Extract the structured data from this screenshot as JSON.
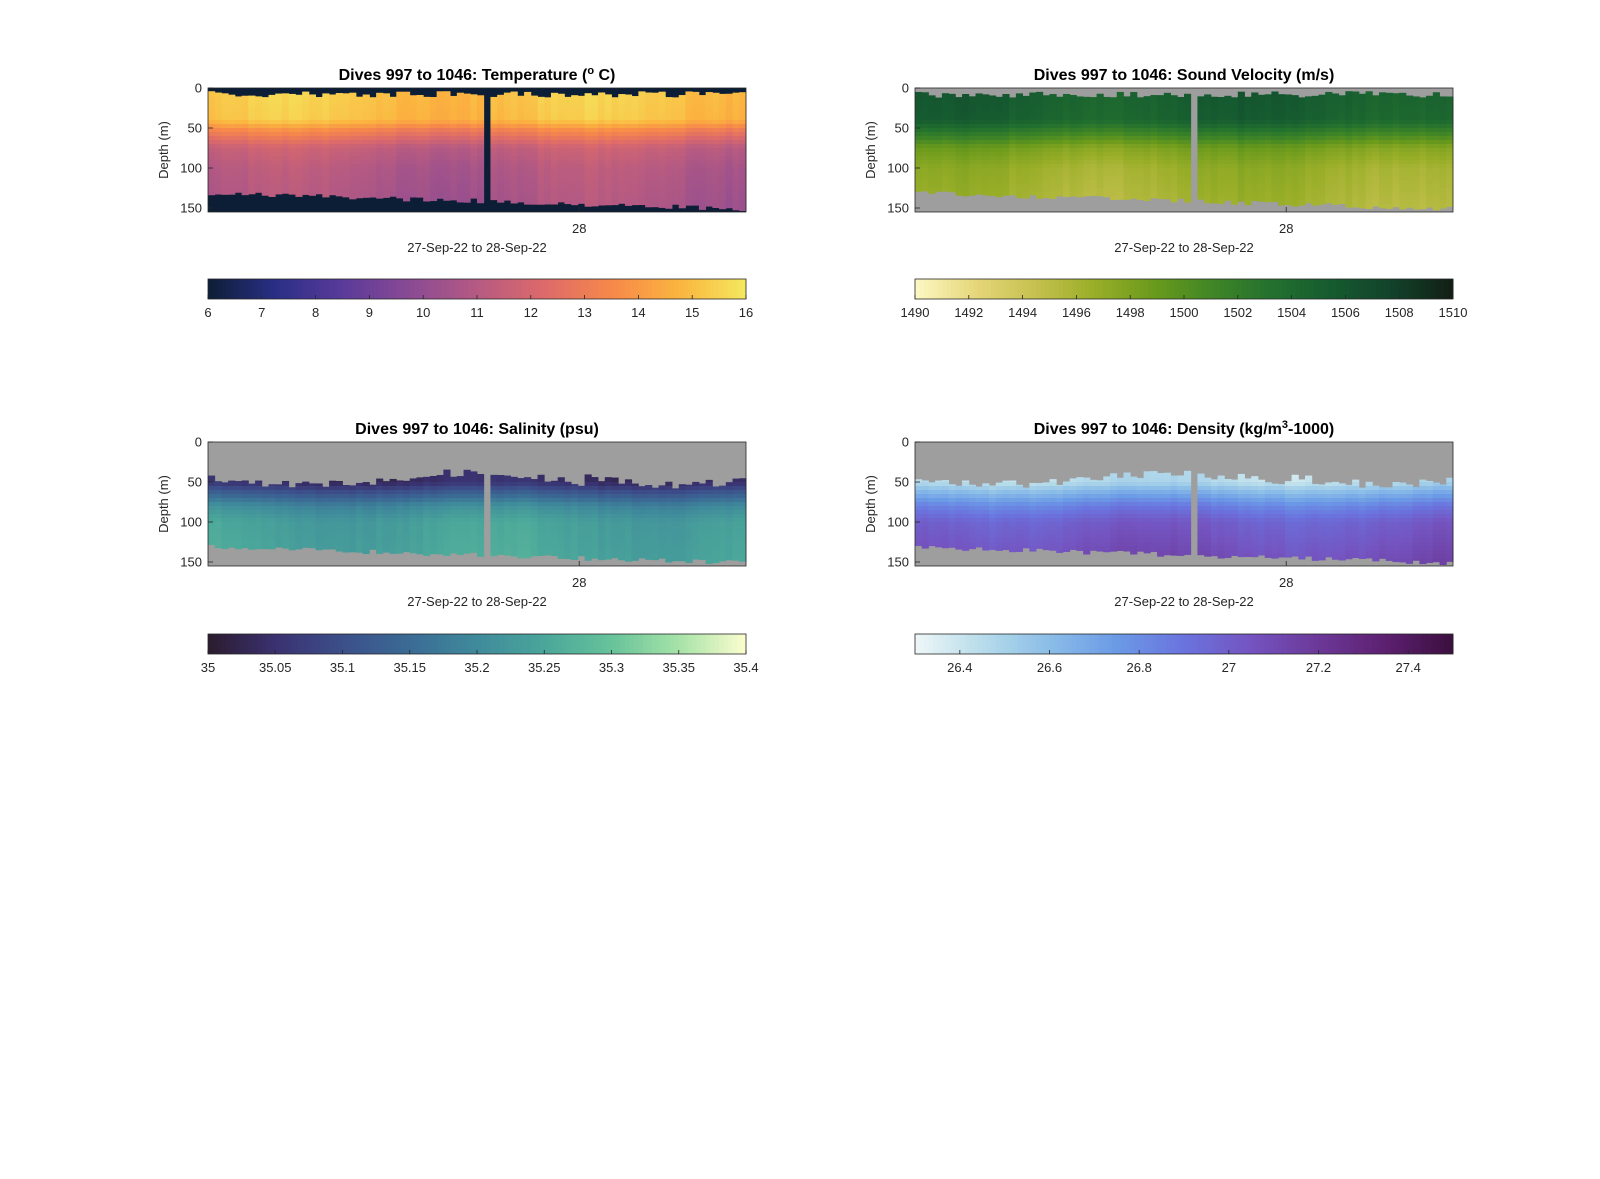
{
  "chart_data": [
    {
      "type": "heatmap",
      "title": {
        "main": "Dives 997 to 1046: Temperature (",
        "sup": "o",
        "tail": " C)"
      },
      "xlabel": "27-Sep-22 to 28-Sep-22",
      "ylabel": "Depth (m)",
      "x_ticks": [
        "28"
      ],
      "y_ticks": [
        0,
        50,
        100,
        150
      ],
      "ylim": [
        0,
        155
      ],
      "ydir": "reverse",
      "colorbar": {
        "min": 6,
        "max": 16,
        "ticks": [
          "6",
          "7",
          "8",
          "9",
          "10",
          "11",
          "12",
          "13",
          "14",
          "15",
          "16"
        ]
      },
      "colormap": [
        "#0c1e36",
        "#2a2f86",
        "#5a3a9a",
        "#8a4a94",
        "#b55a82",
        "#dd6a6a",
        "#f7884a",
        "#fbb43f",
        "#f4e85e"
      ],
      "fill_color": "#0c1e36",
      "profile": [
        [
          0,
          15.2
        ],
        [
          40,
          15.0
        ],
        [
          52,
          13.4
        ],
        [
          75,
          11.4
        ],
        [
          100,
          10.9
        ],
        [
          150,
          10.6
        ]
      ],
      "data_gap_fraction": 0.51
    },
    {
      "type": "heatmap",
      "title": {
        "main": "Dives 997 to 1046: Sound Velocity (m/s)",
        "sup": "",
        "tail": ""
      },
      "xlabel": "27-Sep-22 to 28-Sep-22",
      "ylabel": "Depth (m)",
      "x_ticks": [
        "28"
      ],
      "y_ticks": [
        0,
        50,
        100,
        150
      ],
      "ylim": [
        0,
        155
      ],
      "ydir": "reverse",
      "colorbar": {
        "min": 1490,
        "max": 1510,
        "ticks": [
          "1490",
          "1492",
          "1494",
          "1496",
          "1498",
          "1500",
          "1502",
          "1504",
          "1506",
          "1508",
          "1510"
        ]
      },
      "colormap": [
        "#fdf8c4",
        "#e6d77b",
        "#c6c14f",
        "#99ae28",
        "#6a9a1c",
        "#3f8526",
        "#22702f",
        "#155a30",
        "#12412a",
        "#121e14"
      ],
      "fill_color": "#9e9e9e",
      "profile": [
        [
          0,
          1505.3
        ],
        [
          40,
          1504.8
        ],
        [
          55,
          1502.0
        ],
        [
          75,
          1498.2
        ],
        [
          100,
          1496.6
        ],
        [
          150,
          1495.8
        ]
      ],
      "data_gap_fraction": 0.51
    },
    {
      "type": "heatmap",
      "title": {
        "main": "Dives 997 to 1046: Salinity (psu)",
        "sup": "",
        "tail": ""
      },
      "xlabel": "27-Sep-22 to 28-Sep-22",
      "ylabel": "Depth (m)",
      "x_ticks": [
        "28"
      ],
      "y_ticks": [
        0,
        50,
        100,
        150
      ],
      "ylim": [
        0,
        155
      ],
      "ydir": "reverse",
      "colorbar": {
        "min": 35,
        "max": 35.4,
        "ticks": [
          "35",
          "35.05",
          "35.1",
          "35.15",
          "35.2",
          "35.25",
          "35.3",
          "35.35",
          "35.4"
        ]
      },
      "colormap": [
        "#2b1b2e",
        "#3a3170",
        "#3c4f8a",
        "#3b6b95",
        "#3f8a9b",
        "#4aa69a",
        "#67c39a",
        "#a6e2a8",
        "#fdfdcf"
      ],
      "fill_color": "#9e9e9e",
      "profile": [
        [
          0,
          35.03
        ],
        [
          50,
          35.04
        ],
        [
          60,
          35.1
        ],
        [
          80,
          35.2
        ],
        [
          100,
          35.24
        ],
        [
          150,
          35.25
        ]
      ],
      "data_gap_fraction": 0.51
    },
    {
      "type": "heatmap",
      "title": {
        "main": "Dives 997 to 1046: Density (kg/m",
        "sup": "3",
        "tail": "-1000)"
      },
      "xlabel": "27-Sep-22 to 28-Sep-22",
      "ylabel": "Depth (m)",
      "x_ticks": [
        "28"
      ],
      "y_ticks": [
        0,
        50,
        100,
        150
      ],
      "ylim": [
        0,
        155
      ],
      "ydir": "reverse",
      "colorbar": {
        "min": 26.3,
        "max": 27.5,
        "ticks": [
          "26.4",
          "26.6",
          "26.8",
          "27",
          "27.2",
          "27.4"
        ]
      },
      "colormap": [
        "#eef7f8",
        "#b7dcea",
        "#8bbde8",
        "#6b9ae6",
        "#6a73de",
        "#7454c0",
        "#6b3898",
        "#5c2070",
        "#3b0f3e"
      ],
      "fill_color": "#9e9e9e",
      "profile": [
        [
          0,
          26.4
        ],
        [
          50,
          26.45
        ],
        [
          60,
          26.6
        ],
        [
          80,
          26.85
        ],
        [
          100,
          27.0
        ],
        [
          150,
          27.1
        ]
      ],
      "data_gap_fraction": 0.51
    }
  ]
}
